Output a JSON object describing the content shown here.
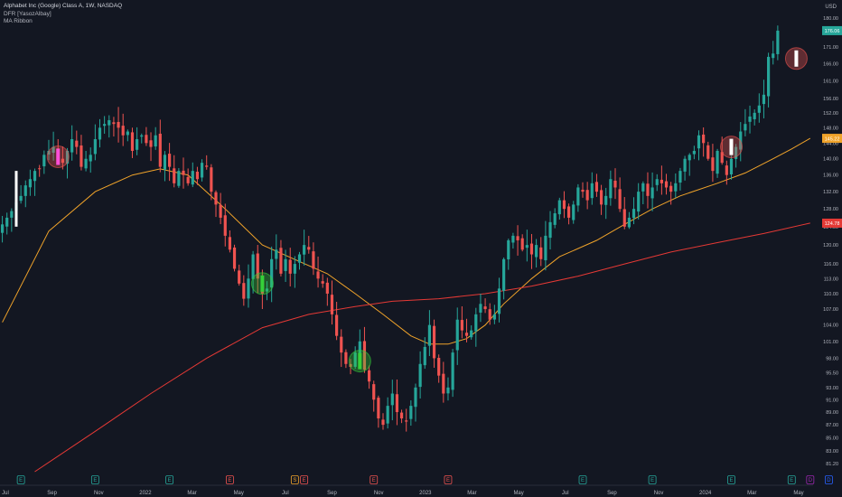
{
  "header": {
    "symbol_line": "Alphabet Inc (Google) Class A, 1W, NASDAQ",
    "indicator_1": "DFR [YasozAlbay]",
    "indicator_2": "MA Ribbon"
  },
  "currency": "USD",
  "colors": {
    "background": "#131722",
    "up": "#26a69a",
    "down": "#ef5350",
    "ma_orange": "#f0a32a",
    "ma_red": "#e53935",
    "axis_text": "#b2b5be",
    "highlight_green": "#36d139",
    "highlight_white": "#ffffff"
  },
  "chart_data": {
    "type": "candlestick",
    "interval": "1W",
    "y_axis": {
      "ticks": [
        "180.00",
        "176.00",
        "171.00",
        "166.00",
        "161.00",
        "156.00",
        "152.00",
        "148.00",
        "144.00",
        "140.00",
        "136.00",
        "132.00",
        "128.00",
        "124.00",
        "120.00",
        "116.00",
        "113.00",
        "110.00",
        "107.00",
        "104.00",
        "101.00",
        "98.00",
        "95.50",
        "93.00",
        "91.00",
        "89.00",
        "87.00",
        "85.00",
        "83.00",
        "81.20"
      ],
      "ylim": [
        80.0,
        183.0
      ],
      "scale": "log"
    },
    "x_axis": {
      "ticks": [
        "Jul",
        "Sep",
        "Nov",
        "2022",
        "Mar",
        "May",
        "Jul",
        "Sep",
        "Nov",
        "2023",
        "Mar",
        "May",
        "Jul",
        "Sep",
        "Nov",
        "2024",
        "Mar",
        "May"
      ]
    },
    "price_labels": [
      {
        "value": "176.06",
        "price": 176.06,
        "color": "#26a69a"
      },
      {
        "value": "145.22",
        "price": 145.22,
        "color": "#f0a32a"
      },
      {
        "value": "124.78",
        "price": 124.78,
        "color": "#e53935"
      }
    ],
    "candles_close": [
      124.5,
      126,
      127.5,
      129.5,
      131,
      133.5,
      135,
      137,
      137.5,
      141,
      142,
      143,
      140.5,
      139,
      142,
      145,
      143,
      138,
      140,
      141,
      145,
      148,
      149,
      150,
      149,
      148,
      146,
      147,
      142,
      145,
      146,
      144,
      143,
      146,
      138,
      141,
      138,
      134,
      137,
      136,
      134,
      137,
      135,
      139,
      138,
      132,
      129,
      126,
      122,
      119,
      115,
      112,
      109,
      113,
      118,
      113,
      110,
      111,
      117,
      119,
      114,
      117,
      114,
      116,
      118,
      120,
      119,
      115,
      113,
      112,
      110,
      106,
      102,
      99,
      97,
      96.5,
      99,
      101,
      96,
      94,
      91,
      88,
      87,
      90,
      92,
      89,
      88,
      87.5,
      90,
      93,
      97,
      100,
      104,
      98,
      95,
      92,
      93,
      99,
      105,
      103,
      102,
      103,
      106,
      108,
      107,
      105,
      106,
      111,
      117,
      121,
      122,
      121,
      119,
      120,
      118,
      120,
      117,
      122,
      125,
      127,
      130,
      128,
      126,
      129,
      133,
      132,
      130,
      134,
      132,
      129,
      131,
      135,
      133,
      128,
      124,
      126,
      128,
      132,
      134,
      131,
      133,
      135,
      134,
      133,
      132,
      134,
      137,
      140,
      141,
      142,
      146,
      144,
      140,
      137,
      142,
      139,
      136,
      140,
      143,
      147,
      149,
      151,
      152,
      154,
      157,
      168,
      169,
      176.06
    ],
    "moving_averages": [
      {
        "color": "#f0a32a",
        "points": [
          [
            0,
            104.5
          ],
          [
            10,
            123
          ],
          [
            20,
            132
          ],
          [
            28,
            136
          ],
          [
            34,
            137.5
          ],
          [
            40,
            136
          ],
          [
            48,
            128
          ],
          [
            56,
            120
          ],
          [
            64,
            116.5
          ],
          [
            70,
            114
          ],
          [
            76,
            110
          ],
          [
            82,
            106
          ],
          [
            88,
            102
          ],
          [
            92,
            100.5
          ],
          [
            96,
            100.5
          ],
          [
            100,
            101.5
          ],
          [
            104,
            104
          ],
          [
            108,
            108
          ],
          [
            114,
            113
          ],
          [
            120,
            117.5
          ],
          [
            128,
            121
          ],
          [
            134,
            124.5
          ],
          [
            140,
            128
          ],
          [
            146,
            131
          ],
          [
            154,
            134
          ],
          [
            160,
            136.5
          ],
          [
            166,
            140
          ],
          [
            170,
            142.5
          ],
          [
            174,
            145.22
          ]
        ]
      },
      {
        "color": "#e53935",
        "points": [
          [
            7,
            80
          ],
          [
            20,
            86
          ],
          [
            32,
            92
          ],
          [
            44,
            98
          ],
          [
            56,
            103.5
          ],
          [
            66,
            106
          ],
          [
            76,
            107.5
          ],
          [
            84,
            108.5
          ],
          [
            94,
            109
          ],
          [
            104,
            110
          ],
          [
            114,
            111.5
          ],
          [
            124,
            113.5
          ],
          [
            134,
            116
          ],
          [
            144,
            118.5
          ],
          [
            154,
            120.5
          ],
          [
            164,
            122.5
          ],
          [
            174,
            124.78
          ]
        ]
      }
    ],
    "highlights": [
      {
        "index": 12,
        "price": 140.5,
        "color": "#ef5350",
        "fill": "#ff4fd8"
      },
      {
        "index": 56,
        "price": 112,
        "color": "#36d139",
        "fill": "#36d139"
      },
      {
        "index": 77,
        "price": 97.5,
        "color": "#36d139",
        "fill": "#36d139"
      },
      {
        "index": 157,
        "price": 143,
        "color": "#ef5350",
        "fill": "#ffffff"
      },
      {
        "index": 171,
        "price": 167.5,
        "color": "#ef5350",
        "fill": "#ffffff"
      }
    ],
    "event_markers": [
      {
        "index": 4,
        "kind": "dividend",
        "glyph": "E",
        "color": "#26a69a"
      },
      {
        "index": 20,
        "kind": "earnings",
        "glyph": "E",
        "color": "#26a69a"
      },
      {
        "index": 36,
        "kind": "earnings",
        "glyph": "E",
        "color": "#26a69a"
      },
      {
        "index": 49,
        "kind": "earnings",
        "glyph": "E",
        "color": "#ef5350"
      },
      {
        "index": 63,
        "kind": "split",
        "glyph": "S",
        "color": "#f0a32a"
      },
      {
        "index": 65,
        "kind": "earnings",
        "glyph": "E",
        "color": "#ef5350"
      },
      {
        "index": 80,
        "kind": "earnings",
        "glyph": "E",
        "color": "#ef5350"
      },
      {
        "index": 96,
        "kind": "earnings",
        "glyph": "E",
        "color": "#ef5350"
      },
      {
        "index": 125,
        "kind": "earnings",
        "glyph": "E",
        "color": "#26a69a"
      },
      {
        "index": 140,
        "kind": "earnings",
        "glyph": "E",
        "color": "#26a69a"
      },
      {
        "index": 157,
        "kind": "earnings",
        "glyph": "E",
        "color": "#26a69a"
      },
      {
        "index": 170,
        "kind": "earnings",
        "glyph": "E",
        "color": "#26a69a"
      },
      {
        "index": 174,
        "kind": "dividend",
        "glyph": "D",
        "color": "#9c27b0"
      },
      {
        "index": 178,
        "kind": "dividend",
        "glyph": "D",
        "color": "#2962ff"
      }
    ]
  }
}
